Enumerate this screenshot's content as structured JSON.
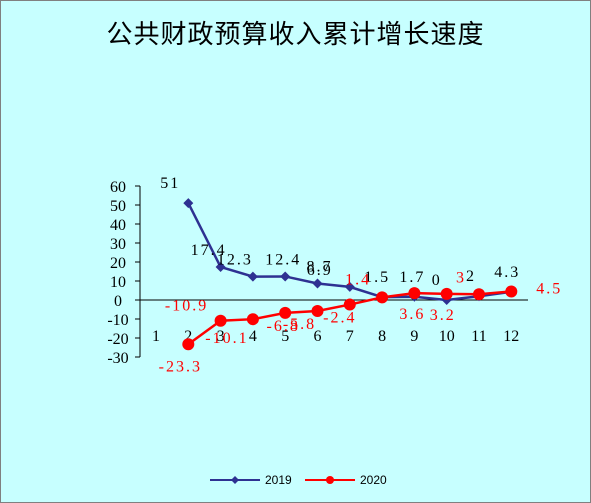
{
  "chart_data": {
    "type": "line",
    "title": "公共财政预算收入累计增长速度",
    "categories": [
      "1",
      "2",
      "3",
      "4",
      "5",
      "6",
      "7",
      "8",
      "9",
      "10",
      "11",
      "12"
    ],
    "y_ticks": [
      "60",
      "50",
      "40",
      "30",
      "20",
      "10",
      "0",
      "-10",
      "-20",
      "-30"
    ],
    "ylim": [
      -30,
      60
    ],
    "grid": false,
    "legend_position": "bottom",
    "series": [
      {
        "name": "2019",
        "color": "#2e3192",
        "marker": "diamond",
        "values": [
          null,
          51,
          17.4,
          12.3,
          12.4,
          8.7,
          6.9,
          1.5,
          1.7,
          0,
          2,
          4.3
        ],
        "labels": [
          null,
          "51",
          "17.4",
          "12.3",
          "12.4",
          "8.7",
          "6.9",
          "1.5",
          "1.7",
          "0",
          "2",
          "4.3"
        ]
      },
      {
        "name": "2020",
        "color": "#ff0000",
        "marker": "circle",
        "values": [
          null,
          -23.3,
          -10.9,
          -10.1,
          -6.8,
          -5.8,
          -2.4,
          1.4,
          3.6,
          3.2,
          3,
          4.5
        ],
        "labels": [
          null,
          "-23.3",
          "-10.9",
          "-10.1",
          "-6.8",
          "-5.8",
          "-2.4",
          "1.4",
          "3.6",
          "3.2",
          "3",
          "4.5"
        ]
      }
    ]
  }
}
